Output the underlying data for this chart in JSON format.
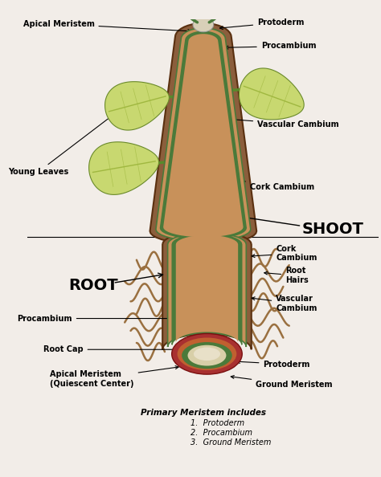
{
  "bg_color": "#f2ede8",
  "shoot_label": "SHOOT",
  "root_label": "ROOT",
  "colors": {
    "outer_brown": "#8B5E3C",
    "bark_brown": "#7A4E2D",
    "inner_brown_light": "#C8915A",
    "inner_brown_mid": "#B87A45",
    "green_vascular": "#4A7A3A",
    "green_light": "#7AAD5A",
    "root_cap_red": "#A83030",
    "root_cap_orange": "#C06030",
    "white_center": "#E8E0C8",
    "leaf_yellow_green": "#C8D870",
    "leaf_mid_green": "#A0B840",
    "leaf_dark_green": "#6A8A2A",
    "leaf_petiole": "#5A8A2A",
    "root_hair_brown": "#9A7040",
    "separator_line": "#000000"
  },
  "footer_title": "Primary Meristem includes",
  "footer_items": [
    "1.  Protoderm",
    "2.  Procambium",
    "3.  Ground Meristem"
  ]
}
